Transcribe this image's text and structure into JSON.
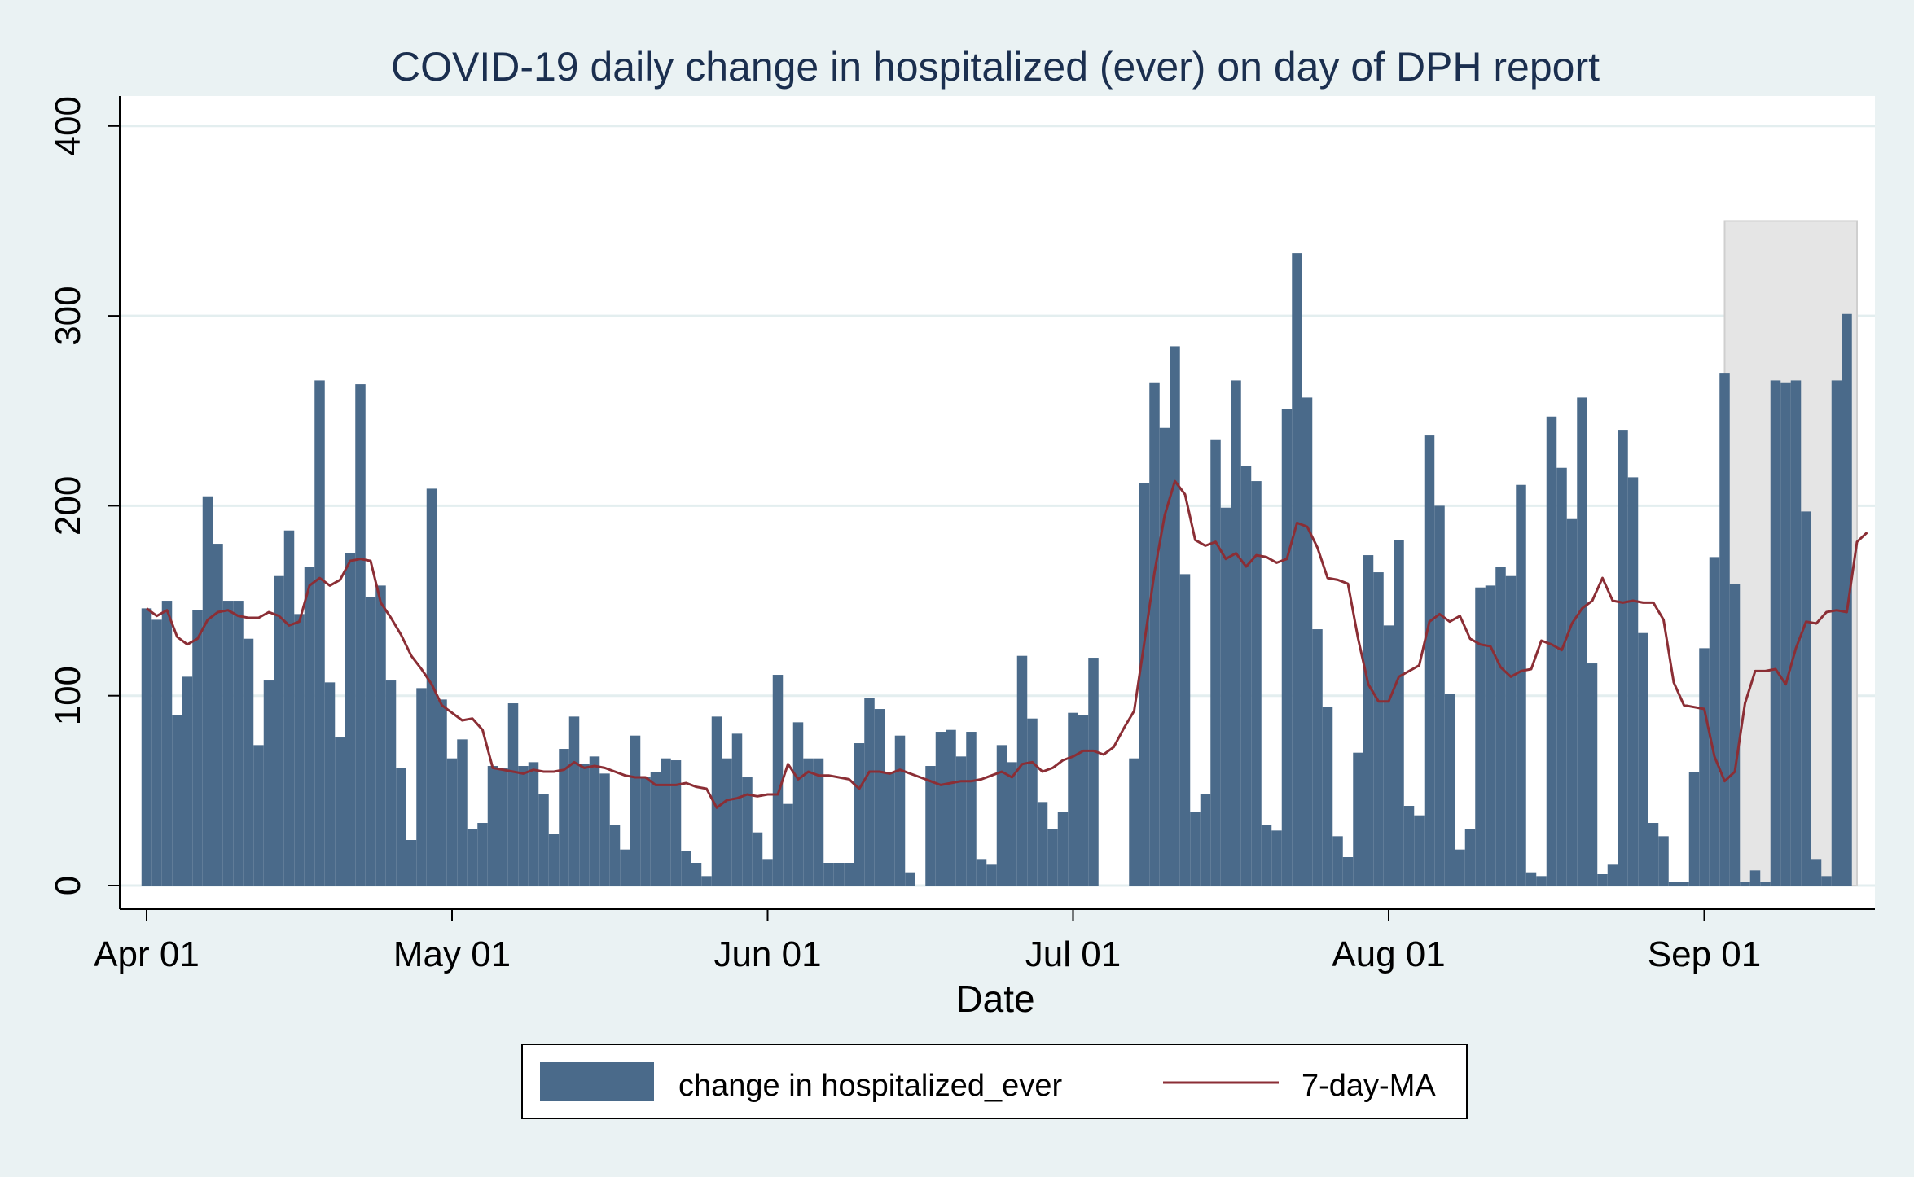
{
  "chart_data": {
    "type": "bar",
    "title": "COVID-19 daily change in hospitalized (ever) on day of DPH report",
    "xlabel": "Date",
    "ylabel": "",
    "ylim": [
      0,
      400
    ],
    "yticks": [
      0,
      100,
      200,
      300,
      400
    ],
    "xticks": [
      {
        "label": "Apr 01",
        "day": 0
      },
      {
        "label": "May 01",
        "day": 30
      },
      {
        "label": "Jun 01",
        "day": 61
      },
      {
        "label": "Jul 01",
        "day": 91
      },
      {
        "label": "Aug 01",
        "day": 122
      },
      {
        "label": "Sep 01",
        "day": 153
      }
    ],
    "x_range_days": [
      0,
      170
    ],
    "shaded_region": {
      "start_day": 155,
      "end_day": 168,
      "top_value": 350
    },
    "series": [
      {
        "name": "change in hospitalized_ever",
        "kind": "bar",
        "color": "#4a6a8a",
        "values": [
          146,
          140,
          150,
          90,
          110,
          145,
          205,
          180,
          150,
          150,
          130,
          74,
          108,
          163,
          187,
          143,
          168,
          266,
          107,
          78,
          175,
          264,
          152,
          158,
          108,
          62,
          24,
          104,
          209,
          98,
          67,
          77,
          30,
          33,
          63,
          62,
          96,
          63,
          65,
          48,
          27,
          72,
          89,
          64,
          68,
          59,
          32,
          19,
          79,
          57,
          60,
          67,
          66,
          18,
          12,
          5,
          89,
          67,
          80,
          57,
          28,
          14,
          111,
          43,
          86,
          67,
          67,
          12,
          12,
          12,
          75,
          99,
          93,
          60,
          79,
          7,
          0,
          63,
          81,
          82,
          68,
          81,
          14,
          11,
          74,
          65,
          121,
          88,
          44,
          30,
          39,
          91,
          90,
          120,
          0,
          0,
          0,
          67,
          212,
          265,
          241,
          284,
          164,
          39,
          48,
          235,
          199,
          266,
          221,
          213,
          32,
          29,
          251,
          333,
          257,
          135,
          94,
          26,
          15,
          70,
          174,
          165,
          137,
          182,
          42,
          37,
          237,
          200,
          101,
          19,
          30,
          157,
          158,
          168,
          163,
          211,
          7,
          5,
          247,
          220,
          193,
          257,
          117,
          6,
          11,
          240,
          215,
          133,
          33,
          26,
          2,
          2,
          60,
          125,
          173,
          270,
          159,
          2,
          8,
          2,
          266,
          265,
          266,
          197,
          14,
          5,
          266,
          301
        ]
      },
      {
        "name": "7-day-MA",
        "kind": "line",
        "color": "#8b2e35",
        "values": [
          146,
          142,
          145,
          131,
          127,
          130,
          140,
          144,
          145,
          142,
          141,
          141,
          144,
          142,
          137,
          139,
          158,
          162,
          158,
          161,
          171,
          172,
          171,
          149,
          141,
          132,
          121,
          114,
          106,
          95,
          91,
          87,
          88,
          82,
          62,
          61,
          60,
          59,
          61,
          60,
          60,
          61,
          65,
          62,
          63,
          62,
          60,
          58,
          57,
          57,
          53,
          53,
          53,
          54,
          52,
          51,
          41,
          45,
          46,
          48,
          47,
          48,
          48,
          64,
          56,
          60,
          58,
          58,
          57,
          56,
          51,
          60,
          60,
          59,
          61,
          59,
          57,
          55,
          53,
          54,
          55,
          55,
          56,
          58,
          60,
          57,
          64,
          65,
          60,
          62,
          66,
          68,
          71,
          71,
          69,
          73,
          83,
          92,
          128,
          165,
          195,
          213,
          206,
          182,
          179,
          181,
          172,
          175,
          168,
          174,
          173,
          170,
          172,
          191,
          189,
          178,
          162,
          161,
          159,
          130,
          106,
          97,
          97,
          110,
          113,
          116,
          139,
          143,
          139,
          142,
          130,
          127,
          126,
          115,
          110,
          113,
          114,
          129,
          127,
          124,
          138,
          146,
          150,
          162,
          150,
          149,
          150,
          149,
          149,
          140,
          107,
          95,
          94,
          93,
          68,
          55,
          60,
          96,
          113,
          113,
          114,
          106,
          125,
          139,
          138,
          144,
          145,
          144,
          181,
          186
        ]
      }
    ],
    "legend": {
      "position": "bottom-center",
      "entries": [
        "change in hospitalized_ever",
        "7-day-MA"
      ]
    }
  }
}
